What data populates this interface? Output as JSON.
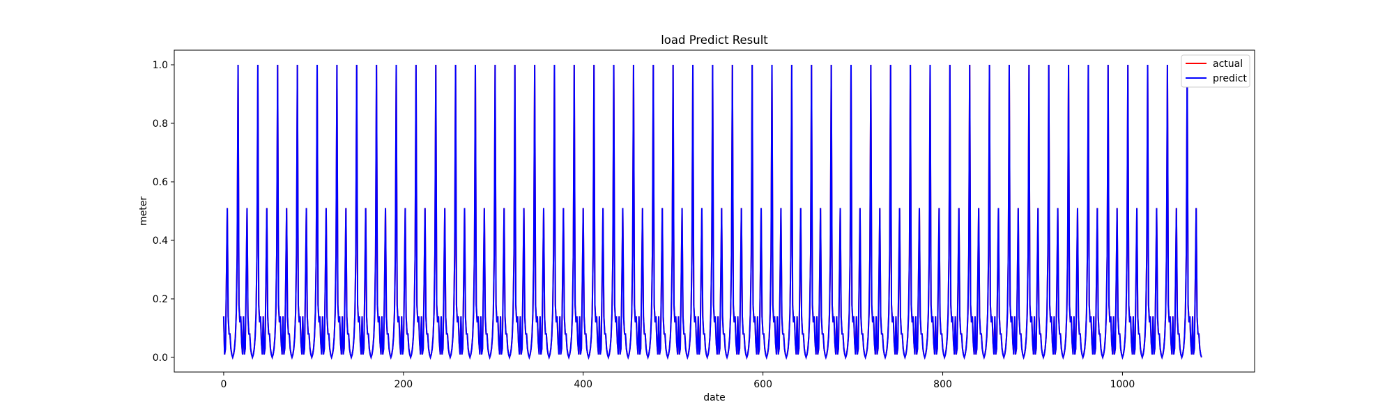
{
  "chart_data": {
    "type": "line",
    "title": "load Predict Result",
    "xlabel": "date",
    "ylabel": "meter",
    "xlim": [
      -55,
      1147
    ],
    "ylim": [
      -0.05,
      1.05
    ],
    "xticks": [
      0,
      200,
      400,
      600,
      800,
      1000
    ],
    "yticks": [
      0.0,
      0.2,
      0.4,
      0.6,
      0.8,
      1.0
    ],
    "xtick_labels": [
      "0",
      "200",
      "400",
      "600",
      "800",
      "1000"
    ],
    "ytick_labels": [
      "0.0",
      "0.2",
      "0.4",
      "0.6",
      "0.8",
      "1.0"
    ],
    "grid": false,
    "legend_position": "upper right",
    "series": [
      {
        "name": "actual",
        "color": "#ff0000"
      },
      {
        "name": "predict",
        "color": "#0000ff"
      }
    ],
    "cycle": {
      "x": [
        0,
        1,
        2,
        3,
        4,
        5,
        6,
        7,
        8,
        9,
        10,
        11,
        12,
        13,
        14,
        15,
        16,
        17,
        18,
        19,
        20,
        21,
        22
      ],
      "y": [
        0.14,
        0.01,
        0.03,
        0.25,
        0.51,
        0.14,
        0.08,
        0.08,
        0.03,
        0.01,
        0.0,
        0.01,
        0.03,
        0.07,
        0.15,
        0.35,
        1.0,
        0.18,
        0.12,
        0.14,
        0.05,
        0.01,
        0.14
      ]
    },
    "x_end": 1088
  }
}
